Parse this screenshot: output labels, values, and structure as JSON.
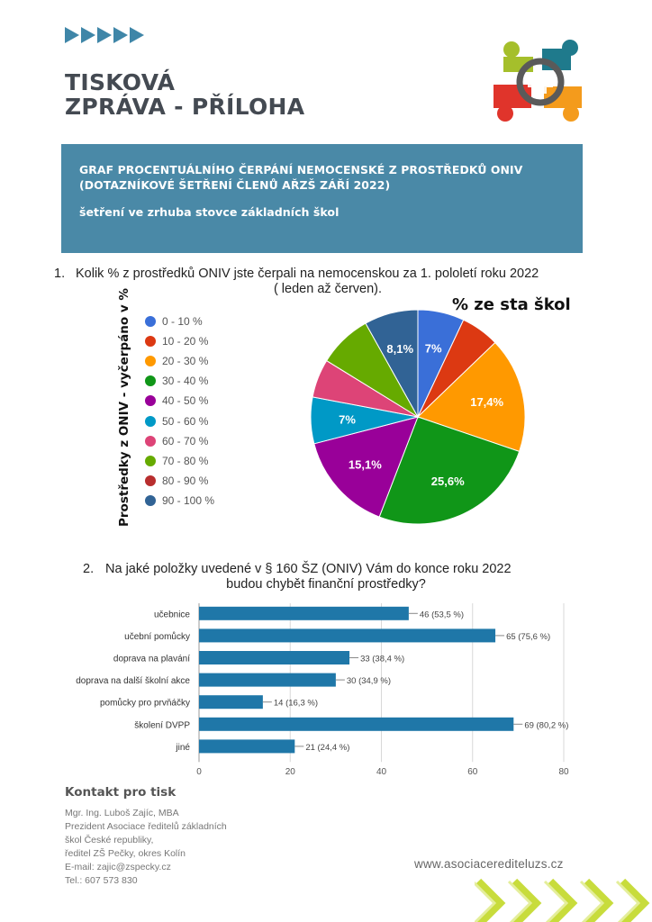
{
  "header": {
    "title_line1": "TISKOVÁ",
    "title_line2": "ZPRÁVA - PŘÍLOHA"
  },
  "banner": {
    "line1": "GRAF PROCENTUÁLNÍHO ČERPÁNÍ NEMOCENSKÉ Z PROSTŘEDKŮ ONIV",
    "line2": "(DOTAZNÍKOVÉ ŠETŘENÍ ČLENŮ AŘZŠ ZÁŘÍ 2022)",
    "line3": "šetření ve zrhuba stovce základních škol"
  },
  "question1": {
    "number": "1.",
    "line1": "Kolik % z prostředků ONIV jste čerpali na nemocenskou za 1. pololetí roku 2022",
    "line2": "( leden až červen)."
  },
  "question2": {
    "number": "2.",
    "line1": "Na jaké položky uvedené v § 160 ŠZ (ONIV) Vám do konce roku 2022",
    "line2": "budou chybět finanční prostředky?"
  },
  "pie_chart": {
    "title": "% ze sta škol",
    "ylabel": "Prostředky z ONIV - vyčerpáno v %"
  },
  "chart_data": [
    {
      "type": "pie",
      "title": "% ze sta škol",
      "ylabel": "Prostředky z ONIV - vyčerpáno v %",
      "legend_position": "left",
      "categories": [
        "0 - 10 %",
        "10 - 20 %",
        "20 - 30 %",
        "30 - 40 %",
        "40 - 50 %",
        "50 - 60 %",
        "60 - 70 %",
        "70 - 80 %",
        "80 - 90 %",
        "90 - 100 %"
      ],
      "values": [
        7,
        5.8,
        17.4,
        25.6,
        15.1,
        7,
        5.8,
        8.1,
        0,
        8.1
      ],
      "data_labels": [
        "7%",
        "",
        "17,4%",
        "25,6%",
        "15,1%",
        "7%",
        "",
        "",
        "",
        "8,1%"
      ],
      "colors": [
        "#3a6fd8",
        "#dc3912",
        "#ff9900",
        "#109618",
        "#990099",
        "#0099c6",
        "#dd4477",
        "#66aa00",
        "#b82e2e",
        "#316395"
      ]
    },
    {
      "type": "bar",
      "orientation": "horizontal",
      "categories": [
        "učebnice",
        "učební pomůcky",
        "doprava na plavání",
        "doprava na další školní akce",
        "pomůcky pro prvňáčky",
        "školení DVPP",
        "jiné"
      ],
      "values": [
        46,
        65,
        33,
        30,
        14,
        69,
        21
      ],
      "data_labels": [
        "46 (53,5 %)",
        "65 (75,6 %)",
        "33 (38,4 %)",
        "30 (34,9 %)",
        "14 (16,3 %)",
        "69 (80,2 %)",
        "21 (24,4 %)"
      ],
      "xlim": [
        0,
        80
      ],
      "xticks": [
        "0",
        "20",
        "40",
        "60",
        "80"
      ],
      "grid": true,
      "color": "#1f77a8"
    }
  ],
  "contact": {
    "title": "Kontakt pro tisk",
    "lines": [
      "Mgr. Ing. Luboš Zajíc, MBA",
      "Prezident Asociace ředitelů základních",
      "škol České republiky,",
      "ředitel ZŠ Pečky, okres Kolín",
      "E-mail: zajic@zspecky.cz",
      "Tel.: 607 573 830"
    ]
  },
  "website": "www.asociacerediteluzs.cz",
  "colors": {
    "banner": "#4a89a7",
    "arrows": "#3f86a8",
    "title": "#444a52",
    "bar": "#1f77a8",
    "chevrons": "#c8dc3c"
  },
  "icons": [
    "arrow-right-icon",
    "association-logo",
    "chevron-decoration-icon"
  ]
}
